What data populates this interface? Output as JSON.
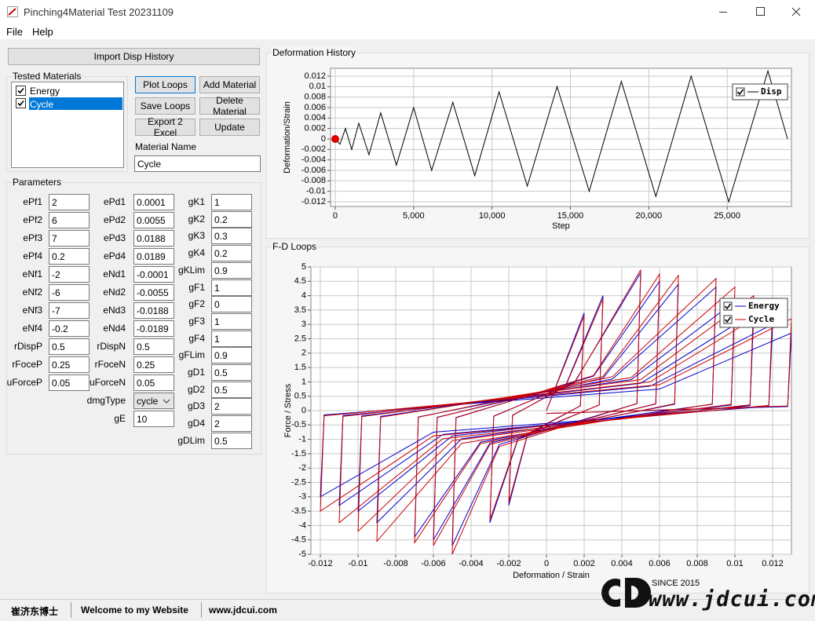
{
  "window": {
    "title": "Pinching4Material Test 20231109"
  },
  "menu": [
    "File",
    "Help"
  ],
  "buttons": {
    "import": "Import Disp History",
    "plot": "Plot Loops",
    "add": "Add Material",
    "save": "Save Loops",
    "delete": "Delete Material",
    "export": "Export 2 Excel",
    "update": "Update"
  },
  "tested_materials": {
    "title": "Tested Materials",
    "items": [
      "Energy",
      "Cycle"
    ]
  },
  "material_name": {
    "label": "Material Name",
    "value": "Cycle"
  },
  "parameters": {
    "title": "Parameters",
    "columns": [
      [
        {
          "label": "ePf1",
          "value": "2"
        },
        {
          "label": "ePf2",
          "value": "6"
        },
        {
          "label": "ePf3",
          "value": "7"
        },
        {
          "label": "ePf4",
          "value": "0.2"
        },
        {
          "label": "eNf1",
          "value": "-2"
        },
        {
          "label": "eNf2",
          "value": "-6"
        },
        {
          "label": "eNf3",
          "value": "-7"
        },
        {
          "label": "eNf4",
          "value": "-0.2"
        },
        {
          "label": "rDispP",
          "value": "0.5"
        },
        {
          "label": "rFoceP",
          "value": "0.25"
        },
        {
          "label": "uForceP",
          "value": "0.05"
        }
      ],
      [
        {
          "label": "ePd1",
          "value": "0.0001"
        },
        {
          "label": "ePd2",
          "value": "0.0055"
        },
        {
          "label": "ePd3",
          "value": "0.0188"
        },
        {
          "label": "ePd4",
          "value": "0.0189"
        },
        {
          "label": "eNd1",
          "value": "-0.0001"
        },
        {
          "label": "eNd2",
          "value": "-0.0055"
        },
        {
          "label": "eNd3",
          "value": "-0.0188"
        },
        {
          "label": "eNd4",
          "value": "-0.0189"
        },
        {
          "label": "rDispN",
          "value": "0.5"
        },
        {
          "label": "rFoceN",
          "value": "0.25"
        },
        {
          "label": "uForceN",
          "value": "0.05"
        },
        {
          "label": "dmgType",
          "value": "cycle",
          "control": "dropdown"
        },
        {
          "label": "gE",
          "value": "10"
        }
      ],
      [
        {
          "label": "gK1",
          "value": "1"
        },
        {
          "label": "gK2",
          "value": "0.2"
        },
        {
          "label": "gK3",
          "value": "0.3"
        },
        {
          "label": "gK4",
          "value": "0.2"
        },
        {
          "label": "gKLim",
          "value": "0.9"
        },
        {
          "label": "gF1",
          "value": "1"
        },
        {
          "label": "gF2",
          "value": "0"
        },
        {
          "label": "gF3",
          "value": "1"
        },
        {
          "label": "gF4",
          "value": "1"
        },
        {
          "label": "gFLim",
          "value": "0.9"
        },
        {
          "label": "gD1",
          "value": "0.5"
        },
        {
          "label": "gD2",
          "value": "0.5"
        },
        {
          "label": "gD3",
          "value": "2"
        },
        {
          "label": "gD4",
          "value": "2"
        },
        {
          "label": "gDLim",
          "value": "0.5"
        }
      ]
    ]
  },
  "chart_data": [
    {
      "type": "line",
      "title": "Deformation History",
      "xlabel": "Step",
      "ylabel": "Deformation/Strain",
      "x": [
        0,
        300,
        650,
        1050,
        1500,
        2150,
        2900,
        3900,
        5000,
        6150,
        7500,
        8900,
        10450,
        12250,
        14150,
        16200,
        18250,
        20450,
        22700,
        25100,
        27600,
        28850
      ],
      "series": [
        {
          "name": "Disp",
          "color": "#000000",
          "values": [
            0,
            -0.001,
            0.002,
            -0.002,
            0.003,
            -0.003,
            0.005,
            -0.005,
            0.006,
            -0.006,
            0.007,
            -0.007,
            0.009,
            -0.009,
            0.01,
            -0.01,
            0.011,
            -0.011,
            0.012,
            -0.012,
            0.013,
            0
          ]
        }
      ],
      "current_point_color": "#e00000",
      "xlim": [
        -300,
        29100
      ],
      "xticks": [
        0,
        {
          "value": 5000,
          "label": "5,000"
        },
        {
          "value": 10000,
          "label": "10,000"
        },
        {
          "value": 15000,
          "label": "15,000"
        },
        {
          "value": 20000,
          "label": "20,000"
        },
        {
          "value": 25000,
          "label": "25,000"
        }
      ],
      "ylim": [
        -0.0129,
        0.0135
      ],
      "yticks": [
        -0.012,
        -0.01,
        -0.008,
        -0.006,
        -0.004,
        -0.002,
        0,
        0.002,
        0.004,
        0.006,
        0.008,
        0.01,
        0.012
      ],
      "grid": true,
      "legend": "upper right"
    },
    {
      "type": "line",
      "title": "F-D Loops",
      "xlabel": "Deformation / Strain",
      "ylabel": "Force / Stress",
      "x": [
        0,
        0.002,
        0.0018,
        -0.001,
        -0.002,
        -0.0018,
        0.001,
        0.003,
        0.0028,
        -0.0015,
        -0.003,
        -0.0028,
        0.0015,
        0.005,
        0.0048,
        -0.0025,
        -0.005,
        -0.0048,
        0.0025,
        0.006,
        0.0058,
        -0.003,
        -0.006,
        -0.0058,
        0.003,
        0.007,
        0.0068,
        -0.0035,
        -0.007,
        -0.0068,
        0.0035,
        0.009,
        0.0088,
        -0.0045,
        -0.009,
        -0.0088,
        0.0045,
        0.01,
        0.0098,
        -0.005,
        -0.01,
        -0.0098,
        0.005,
        0.011,
        0.0108,
        -0.0055,
        -0.011,
        -0.0108,
        0.0055,
        0.012,
        0.0118,
        -0.006,
        -0.012,
        -0.0118,
        0.006,
        0.013,
        0.0128,
        0
      ],
      "series": [
        {
          "name": "Energy",
          "color": "#0000cc",
          "values": [
            0,
            3.4,
            0.17,
            -0.83,
            -3.3,
            -0.17,
            0.85,
            4.0,
            0.2,
            -0.98,
            -3.9,
            -0.2,
            1.0,
            4.8,
            0.24,
            -1.18,
            -4.7,
            -0.24,
            1.2,
            4.5,
            0.23,
            -1.13,
            -4.5,
            -0.23,
            1.13,
            4.4,
            0.22,
            -1.1,
            -4.4,
            -0.22,
            1.1,
            4.3,
            0.22,
            -0.98,
            -3.9,
            -0.2,
            1.08,
            3.8,
            0.19,
            -0.88,
            -3.5,
            -0.18,
            0.95,
            3.4,
            0.17,
            -0.83,
            -3.3,
            -0.17,
            0.85,
            3.0,
            0.15,
            -0.75,
            -3.0,
            -0.15,
            0.75,
            2.7,
            0.14,
            -0.1
          ]
        },
        {
          "name": "Cycle",
          "color": "#cc0000",
          "values": [
            0,
            3.3,
            0.165,
            -0.8,
            -3.2,
            -0.16,
            0.825,
            3.9,
            0.195,
            -0.95,
            -3.8,
            -0.19,
            0.975,
            4.9,
            0.245,
            -1.25,
            -5.0,
            -0.25,
            1.225,
            4.75,
            0.24,
            -1.18,
            -4.7,
            -0.24,
            1.19,
            4.7,
            0.24,
            -1.15,
            -4.6,
            -0.23,
            1.18,
            4.6,
            0.23,
            -1.14,
            -4.55,
            -0.23,
            1.15,
            4.3,
            0.22,
            -1.05,
            -4.2,
            -0.21,
            1.08,
            4.0,
            0.2,
            -0.98,
            -3.9,
            -0.2,
            1.0,
            3.6,
            0.18,
            -0.88,
            -3.5,
            -0.18,
            0.9,
            3.2,
            0.16,
            -0.1
          ]
        }
      ],
      "xlim": [
        -0.0125,
        0.013
      ],
      "xticks": [
        -0.012,
        -0.01,
        -0.008,
        -0.006,
        -0.004,
        -0.002,
        0,
        0.002,
        0.004,
        0.006,
        0.008,
        0.01,
        0.012
      ],
      "ylim": [
        -5,
        5
      ],
      "yticks": [
        -5,
        -4.5,
        -4,
        -3.5,
        -3,
        -2.5,
        -2,
        -1.5,
        -1,
        -0.5,
        0,
        0.5,
        1,
        1.5,
        2,
        2.5,
        3,
        3.5,
        4,
        4.5,
        5
      ],
      "grid": true,
      "legend": "upper right"
    }
  ],
  "status_bar": [
    "崔济东博士",
    "Welcome to my Website",
    "www.jdcui.com"
  ],
  "logo": {
    "since": "SINCE 2015",
    "site": "www.jdcui.com"
  }
}
